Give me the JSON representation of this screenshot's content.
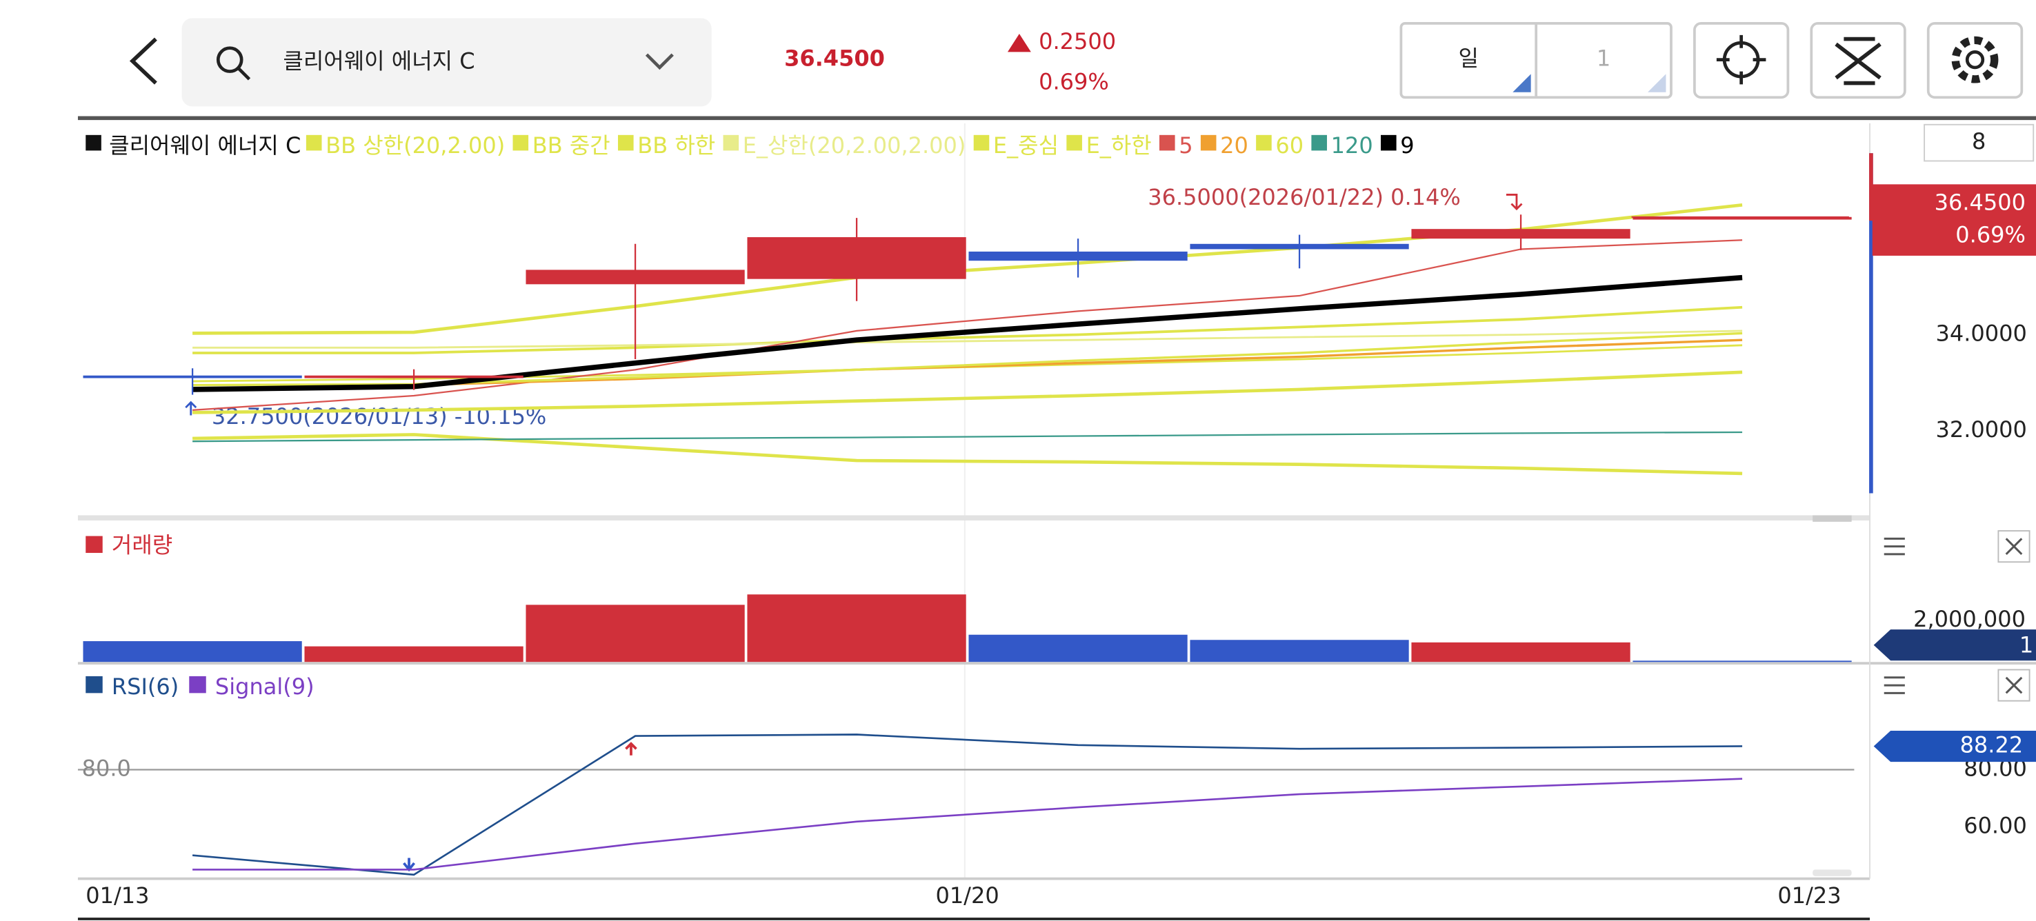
{
  "header": {
    "title": "클리어웨이 에너지 C",
    "price": "36.4500",
    "change": "0.2500",
    "change_pct": "0.69%",
    "period": "일",
    "period_count": "1"
  },
  "chart_data": {
    "type": "candlestick",
    "legend_title": "클리어웨이 에너지 C",
    "x_labels": [
      "01/13",
      null,
      null,
      null,
      "01/20",
      null,
      null,
      "01/23"
    ],
    "candles": [
      {
        "open": 33.15,
        "high": 33.3,
        "low": 32.75,
        "close": 33.13
      },
      {
        "open": 33.12,
        "high": 33.28,
        "low": 32.85,
        "close": 33.15
      },
      {
        "open": 35.05,
        "high": 35.89,
        "low": 33.49,
        "close": 35.35
      },
      {
        "open": 35.16,
        "high": 36.43,
        "low": 34.7,
        "close": 36.03
      },
      {
        "open": 35.73,
        "high": 36.0,
        "low": 35.19,
        "close": 35.54
      },
      {
        "open": 35.89,
        "high": 36.08,
        "low": 35.38,
        "close": 35.78
      },
      {
        "open": 36.0,
        "high": 36.5,
        "low": 35.76,
        "close": 36.2
      },
      {
        "open": 36.45,
        "high": 36.45,
        "low": 36.45,
        "close": 36.45
      }
    ],
    "up_color": "#d0303a",
    "down_color": "#3358c8",
    "overlays": [
      {
        "name": "BB 상한(20,2.00)",
        "color": "#dfe44a",
        "width": 2.5,
        "values": [
          34.03,
          34.05,
          34.59,
          35.19,
          35.49,
          35.81,
          36.19,
          36.7
        ]
      },
      {
        "name": "BB 중간",
        "color": "#dfe44a",
        "width": 2,
        "values": [
          33.62,
          33.62,
          33.73,
          33.89,
          34.0,
          34.16,
          34.32,
          34.57
        ]
      },
      {
        "name": "BB 하한",
        "color": "#dfe44a",
        "width": 2.5,
        "values": [
          31.84,
          31.92,
          31.65,
          31.38,
          31.35,
          31.3,
          31.22,
          31.11
        ]
      },
      {
        "name": "E_상한(20,2.00,2.00)",
        "color": "#e8ec8a",
        "width": 1.5,
        "values": [
          33.73,
          33.73,
          33.78,
          33.84,
          33.89,
          33.95,
          34.0,
          34.08
        ]
      },
      {
        "name": "E_중심",
        "color": "#dfe44a",
        "width": 1.5,
        "values": [
          33.03,
          33.08,
          33.16,
          33.27,
          33.38,
          33.49,
          33.62,
          33.78
        ]
      },
      {
        "name": "E_하한",
        "color": "#dfe44a",
        "width": 2.5,
        "values": [
          32.38,
          32.43,
          32.51,
          32.62,
          32.73,
          32.86,
          33.03,
          33.22
        ]
      },
      {
        "name": "5",
        "color": "#d9534f",
        "width": 1.2,
        "values": [
          32.43,
          32.73,
          33.27,
          34.08,
          34.49,
          34.81,
          35.78,
          35.97
        ]
      },
      {
        "name": "20",
        "color": "#f0a030",
        "width": 1.8,
        "values": [
          32.86,
          32.95,
          33.08,
          33.27,
          33.41,
          33.54,
          33.73,
          33.89
        ]
      },
      {
        "name": "60",
        "color": "#dfe44a",
        "width": 1.8,
        "values": [
          32.95,
          32.97,
          33.11,
          33.27,
          33.46,
          33.62,
          33.84,
          34.03
        ]
      },
      {
        "name": "120",
        "color": "#3a9a8a",
        "width": 1.2,
        "values": [
          31.78,
          31.81,
          31.84,
          31.86,
          31.89,
          31.92,
          31.95,
          31.97
        ]
      },
      {
        "name": "9",
        "color": "#000000",
        "width": 4,
        "values": [
          32.86,
          32.92,
          33.41,
          33.89,
          34.22,
          34.54,
          34.84,
          35.19
        ]
      }
    ],
    "ylim": [
      30.7,
      38.4
    ],
    "yticks": [
      {
        "value": 34,
        "label": "34.0000"
      },
      {
        "value": 32,
        "label": "32.0000"
      }
    ],
    "annotations": [
      "36.5000(2026/01/22) 0.14%",
      "32.7500(2026/01/13) -10.15%"
    ],
    "price_tag": [
      "36.4500",
      "0.69%"
    ],
    "corner_box": "8",
    "volume": {
      "title": "거래량",
      "color": "#d0303a",
      "values": [
        1000000,
        750000,
        2750000,
        3250000,
        1310000,
        1060000,
        940000,
        60000
      ],
      "ylim": [
        0,
        5000000
      ],
      "yticks": [
        {
          "value": 2000000,
          "label": "2,000,000"
        }
      ],
      "tag": "1"
    },
    "rsi": {
      "series": [
        {
          "name": "RSI(6)",
          "color": "#1f4e8c",
          "values": [
            50.0,
            43.2,
            91.8,
            92.3,
            88.6,
            87.3,
            87.7,
            88.22
          ]
        },
        {
          "name": "Signal(9)",
          "color": "#7b3fc4",
          "values": [
            45.0,
            45.0,
            54.1,
            61.8,
            66.8,
            71.4,
            74.1,
            76.8
          ]
        }
      ],
      "ylim": [
        40,
        100
      ],
      "yticks": [
        {
          "value": 80,
          "label": "80.00"
        },
        {
          "value": 60,
          "label": "60.00"
        }
      ],
      "reference": {
        "value": 80,
        "label": "80.0"
      },
      "tag": "88.22"
    }
  }
}
